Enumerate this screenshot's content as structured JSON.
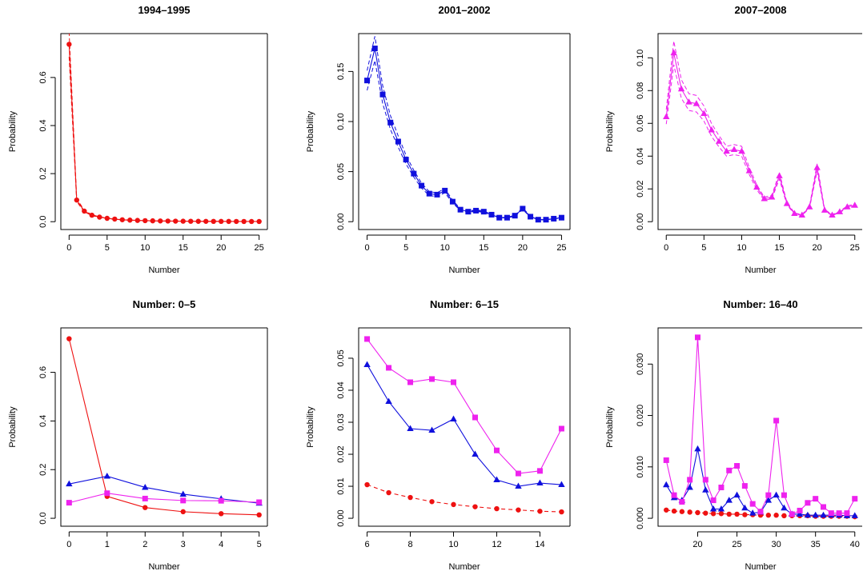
{
  "colors": {
    "red": "#ee1111",
    "blue": "#1010dd",
    "magenta": "#ee22ee"
  },
  "chart_data": [
    {
      "type": "line",
      "title": "1994–1995",
      "xlabel": "Number",
      "ylabel": "Probability",
      "xlim": [
        0,
        25
      ],
      "ylim": [
        0,
        0.75
      ],
      "xticks": [
        0,
        5,
        10,
        15,
        20,
        25
      ],
      "yticks": [
        0.0,
        0.2,
        0.4,
        0.6
      ],
      "ytick_labels": [
        "0.0",
        "0.2",
        "0.4",
        "0.6"
      ],
      "series": [
        {
          "color": "red",
          "marker": "circle",
          "dash": "",
          "band": true,
          "x": [
            0,
            1,
            2,
            3,
            4,
            5,
            6,
            7,
            8,
            9,
            10,
            11,
            12,
            13,
            14,
            15,
            16,
            17,
            18,
            19,
            20,
            21,
            22,
            23,
            24,
            25
          ],
          "values": [
            0.738,
            0.09,
            0.044,
            0.027,
            0.019,
            0.014,
            0.011,
            0.008,
            0.0065,
            0.0052,
            0.0043,
            0.0036,
            0.003,
            0.0026,
            0.0022,
            0.002,
            0.0017,
            0.0015,
            0.0014,
            0.0013,
            0.0012,
            0.0011,
            0.001,
            0.0009,
            0.0008,
            0.0008
          ]
        }
      ]
    },
    {
      "type": "line",
      "title": "2001–2002",
      "xlabel": "Number",
      "ylabel": "Probability",
      "xlim": [
        0,
        25
      ],
      "ylim": [
        0,
        0.18
      ],
      "xticks": [
        0,
        5,
        10,
        15,
        20,
        25
      ],
      "yticks": [
        0.0,
        0.05,
        0.1,
        0.15
      ],
      "ytick_labels": [
        "0.00",
        "0.05",
        "0.10",
        "0.15"
      ],
      "series": [
        {
          "color": "blue",
          "marker": "square",
          "dash": "",
          "band": true,
          "x": [
            0,
            1,
            2,
            3,
            4,
            5,
            6,
            7,
            8,
            9,
            10,
            11,
            12,
            13,
            14,
            15,
            16,
            17,
            18,
            19,
            20,
            21,
            22,
            23,
            24,
            25
          ],
          "values": [
            0.141,
            0.173,
            0.127,
            0.099,
            0.08,
            0.062,
            0.048,
            0.036,
            0.028,
            0.027,
            0.031,
            0.02,
            0.012,
            0.01,
            0.011,
            0.01,
            0.007,
            0.004,
            0.004,
            0.006,
            0.013,
            0.005,
            0.002,
            0.002,
            0.003,
            0.004
          ]
        }
      ]
    },
    {
      "type": "line",
      "title": "2007–2008",
      "xlabel": "Number",
      "ylabel": "Probability",
      "xlim": [
        0,
        25
      ],
      "ylim": [
        0,
        0.11
      ],
      "xticks": [
        0,
        5,
        10,
        15,
        20,
        25
      ],
      "yticks": [
        0.0,
        0.02,
        0.04,
        0.06,
        0.08,
        0.1
      ],
      "ytick_labels": [
        "0.00",
        "0.02",
        "0.04",
        "0.06",
        "0.08",
        "0.10"
      ],
      "series": [
        {
          "color": "magenta",
          "marker": "triangle",
          "dash": "",
          "band": true,
          "x": [
            0,
            1,
            2,
            3,
            4,
            5,
            6,
            7,
            8,
            9,
            10,
            11,
            12,
            13,
            14,
            15,
            16,
            17,
            18,
            19,
            20,
            21,
            22,
            23,
            24,
            25
          ],
          "values": [
            0.064,
            0.103,
            0.081,
            0.073,
            0.072,
            0.066,
            0.056,
            0.049,
            0.043,
            0.044,
            0.043,
            0.031,
            0.021,
            0.014,
            0.015,
            0.028,
            0.011,
            0.005,
            0.004,
            0.009,
            0.033,
            0.007,
            0.004,
            0.006,
            0.009,
            0.01
          ]
        }
      ]
    },
    {
      "type": "line",
      "title": "Number: 0–5",
      "xlabel": "Number",
      "ylabel": "Probability",
      "xlim": [
        0,
        5
      ],
      "ylim": [
        0,
        0.75
      ],
      "xticks": [
        0,
        1,
        2,
        3,
        4,
        5
      ],
      "yticks": [
        0.0,
        0.2,
        0.4,
        0.6
      ],
      "ytick_labels": [
        "0.0",
        "0.2",
        "0.4",
        "0.6"
      ],
      "series": [
        {
          "color": "red",
          "marker": "circle",
          "dash": "",
          "band": false,
          "x": [
            0,
            1,
            2,
            3,
            4,
            5
          ],
          "values": [
            0.738,
            0.09,
            0.044,
            0.027,
            0.019,
            0.014
          ]
        },
        {
          "color": "blue",
          "marker": "triangle",
          "dash": "",
          "band": false,
          "x": [
            0,
            1,
            2,
            3,
            4,
            5
          ],
          "values": [
            0.141,
            0.173,
            0.127,
            0.099,
            0.08,
            0.062
          ]
        },
        {
          "color": "magenta",
          "marker": "square",
          "dash": "",
          "band": false,
          "x": [
            0,
            1,
            2,
            3,
            4,
            5
          ],
          "values": [
            0.064,
            0.103,
            0.081,
            0.073,
            0.072,
            0.066
          ]
        }
      ]
    },
    {
      "type": "line",
      "title": "Number: 6–15",
      "xlabel": "Number",
      "ylabel": "Probability",
      "xlim": [
        6,
        15
      ],
      "ylim": [
        0,
        0.057
      ],
      "xticks": [
        6,
        8,
        10,
        12,
        14
      ],
      "yticks": [
        0.0,
        0.01,
        0.02,
        0.03,
        0.04,
        0.05
      ],
      "ytick_labels": [
        "0.00",
        "0.01",
        "0.02",
        "0.03",
        "0.04",
        "0.05"
      ],
      "series": [
        {
          "color": "red",
          "marker": "circle",
          "dash": "5,4",
          "band": false,
          "x": [
            6,
            7,
            8,
            9,
            10,
            11,
            12,
            13,
            14,
            15
          ],
          "values": [
            0.0105,
            0.008,
            0.0065,
            0.0052,
            0.0043,
            0.0036,
            0.003,
            0.0026,
            0.0022,
            0.002
          ]
        },
        {
          "color": "blue",
          "marker": "triangle",
          "dash": "",
          "band": false,
          "x": [
            6,
            7,
            8,
            9,
            10,
            11,
            12,
            13,
            14,
            15
          ],
          "values": [
            0.048,
            0.0365,
            0.028,
            0.0275,
            0.031,
            0.02,
            0.012,
            0.01,
            0.011,
            0.0105
          ]
        },
        {
          "color": "magenta",
          "marker": "square",
          "dash": "",
          "band": false,
          "x": [
            6,
            7,
            8,
            9,
            10,
            11,
            12,
            13,
            14,
            15
          ],
          "values": [
            0.056,
            0.047,
            0.0425,
            0.0435,
            0.0425,
            0.0315,
            0.0212,
            0.014,
            0.0148,
            0.028
          ]
        }
      ]
    },
    {
      "type": "line",
      "title": "Number: 16–40",
      "xlabel": "Number",
      "ylabel": "Probability",
      "xlim": [
        16,
        40
      ],
      "ylim": [
        0,
        0.0355
      ],
      "xticks": [
        20,
        25,
        30,
        35,
        40
      ],
      "yticks": [
        0.0,
        0.01,
        0.02,
        0.03
      ],
      "ytick_labels": [
        "0.000",
        "0.010",
        "0.020",
        "0.030"
      ],
      "series": [
        {
          "color": "red",
          "marker": "circle",
          "dash": "5,4",
          "band": false,
          "x": [
            16,
            17,
            18,
            19,
            20,
            21,
            22,
            23,
            24,
            25,
            26,
            27,
            28,
            29,
            30,
            31,
            32,
            33,
            34,
            35,
            36,
            37,
            38,
            39,
            40
          ],
          "values": [
            0.0016,
            0.0014,
            0.0013,
            0.0012,
            0.0011,
            0.001,
            0.0009,
            0.0009,
            0.0008,
            0.0008,
            0.0007,
            0.0007,
            0.0006,
            0.0006,
            0.0006,
            0.0005,
            0.0005,
            0.0005,
            0.0005,
            0.0004,
            0.0004,
            0.0004,
            0.0004,
            0.0004,
            0.0003
          ]
        },
        {
          "color": "blue",
          "marker": "triangle",
          "dash": "",
          "band": false,
          "x": [
            16,
            17,
            18,
            19,
            20,
            21,
            22,
            23,
            24,
            25,
            26,
            27,
            28,
            29,
            30,
            31,
            32,
            33,
            34,
            35,
            36,
            37,
            38,
            39,
            40
          ],
          "values": [
            0.0065,
            0.004,
            0.0035,
            0.006,
            0.0135,
            0.0055,
            0.0018,
            0.0018,
            0.0035,
            0.0045,
            0.002,
            0.001,
            0.0012,
            0.0035,
            0.0045,
            0.002,
            0.0008,
            0.0008,
            0.0006,
            0.0006,
            0.0006,
            0.0006,
            0.0006,
            0.0005,
            0.0005
          ]
        },
        {
          "color": "magenta",
          "marker": "square",
          "dash": "",
          "band": false,
          "x": [
            16,
            17,
            18,
            19,
            20,
            21,
            22,
            23,
            24,
            25,
            26,
            27,
            28,
            29,
            30,
            31,
            32,
            33,
            34,
            35,
            36,
            37,
            38,
            39,
            40
          ],
          "values": [
            0.0113,
            0.0045,
            0.0032,
            0.0075,
            0.0352,
            0.0075,
            0.0035,
            0.006,
            0.0093,
            0.0102,
            0.0063,
            0.0028,
            0.0013,
            0.0045,
            0.019,
            0.0045,
            0.0008,
            0.0015,
            0.003,
            0.0038,
            0.0022,
            0.001,
            0.001,
            0.001,
            0.0038
          ]
        }
      ]
    }
  ]
}
